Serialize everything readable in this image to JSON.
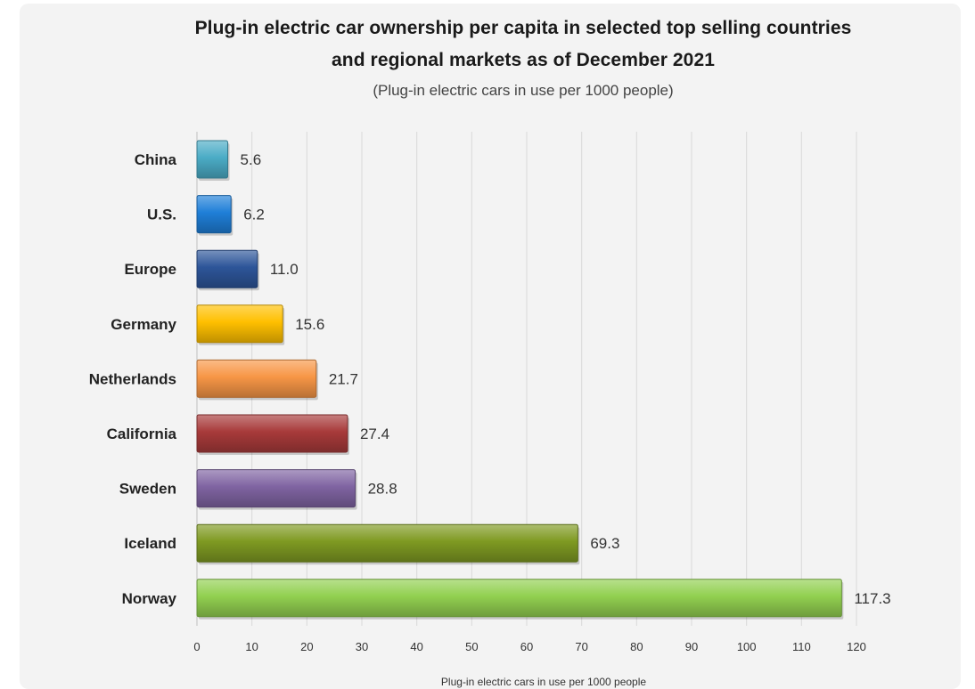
{
  "chart_data": {
    "type": "bar",
    "orientation": "horizontal",
    "title_line_1": "Plug-in electric car ownership per capita in selected top selling countries",
    "title_line_2": "and regional markets as of December 2021",
    "subtitle": "(Plug-in electric cars in use per 1000 people)",
    "xlabel": "Plug-in electric cars in use per 1000 people",
    "ylabel": "",
    "xlim": [
      0,
      120
    ],
    "ticks": [
      "0",
      "10",
      "20",
      "30",
      "40",
      "50",
      "60",
      "70",
      "80",
      "90",
      "100",
      "110",
      "120"
    ],
    "grid": true,
    "categories": [
      "China",
      "U.S.",
      "Europe",
      "Germany",
      "Netherlands",
      "California",
      "Sweden",
      "Iceland",
      "Norway"
    ],
    "values": [
      5.6,
      6.2,
      11.0,
      15.6,
      21.7,
      27.4,
      28.8,
      69.3,
      117.3
    ],
    "value_labels": [
      "5.6",
      "6.2",
      "11.0",
      "15.6",
      "21.7",
      "27.4",
      "28.8",
      "69.3",
      "117.3"
    ],
    "colors": [
      "#4bacc6",
      "#1f7fd8",
      "#2d5599",
      "#ffc000",
      "#f79646",
      "#a83a3a",
      "#8064a2",
      "#7f9a22",
      "#92d050"
    ]
  }
}
